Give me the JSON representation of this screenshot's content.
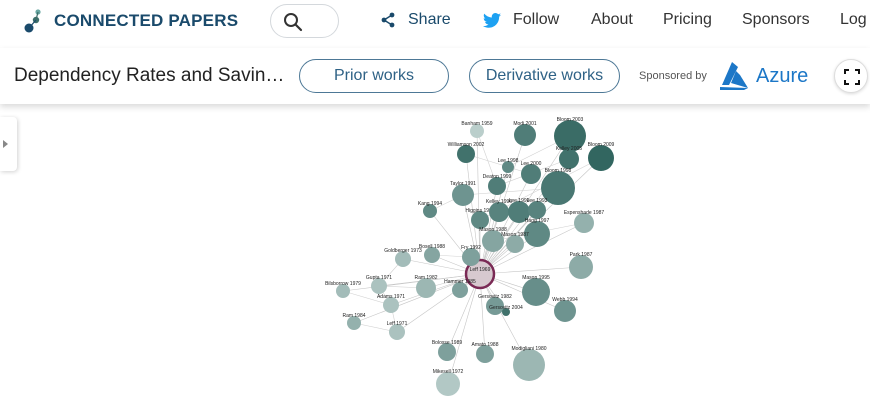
{
  "header": {
    "brand": "CONNECTED PAPERS",
    "nav": {
      "share": "Share",
      "follow": "Follow",
      "about": "About",
      "pricing": "Pricing",
      "sponsors": "Sponsors",
      "login": "Log"
    }
  },
  "toolbar": {
    "title": "Dependency Rates and Saving Rates",
    "prior_works": "Prior works",
    "derivative_works": "Derivative works",
    "sponsored_by": "Sponsored by",
    "sponsor_name": "Azure"
  },
  "colors": {
    "brand": "#1a4a6b",
    "accent": "#2f6286",
    "twitter": "#1da1f2",
    "azure": "#1c77c7",
    "node_dark": "#3d6e69",
    "node_light": "#c9d9d7",
    "selected": "#7a2a55"
  },
  "graph": {
    "nodes": [
      {
        "label": "Leff 1969",
        "year_shade": 0.5,
        "selected": true
      },
      {
        "label": "Banham 1959",
        "year_shade": 0.1
      },
      {
        "label": "Modi 2001",
        "year_shade": 0.8
      },
      {
        "label": "Bloom 2003",
        "year_shade": 0.95
      },
      {
        "label": "Williamson 2002",
        "year_shade": 0.9
      },
      {
        "label": "Lee 1998",
        "year_shade": 0.7
      },
      {
        "label": "Kelley 2005",
        "year_shade": 0.9
      },
      {
        "label": "Bloom 2009",
        "year_shade": 1.0
      },
      {
        "label": "Lee 2000",
        "year_shade": 0.8
      },
      {
        "label": "Deaton 1999",
        "year_shade": 0.8
      },
      {
        "label": "Bloom 1998",
        "year_shade": 0.85
      },
      {
        "label": "Taylor 1991",
        "year_shade": 0.6
      },
      {
        "label": "Kang 1994",
        "year_shade": 0.7
      },
      {
        "label": "Higgins 1994",
        "year_shade": 0.7
      },
      {
        "label": "Kelley 1996",
        "year_shade": 0.75
      },
      {
        "label": "Lee 1999",
        "year_shade": 0.8
      },
      {
        "label": "Lee 1993",
        "year_shade": 0.75
      },
      {
        "label": "Hagg 1997",
        "year_shade": 0.7
      },
      {
        "label": "Espenshade 1987",
        "year_shade": 0.35
      },
      {
        "label": "Mason 1988",
        "year_shade": 0.45
      },
      {
        "label": "Mason 1987",
        "year_shade": 0.4
      },
      {
        "label": "Goldberger 1973",
        "year_shade": 0.25
      },
      {
        "label": "Bosell 1988",
        "year_shade": 0.45
      },
      {
        "label": "Fry 1992",
        "year_shade": 0.5
      },
      {
        "label": "Park 1987",
        "year_shade": 0.4
      },
      {
        "label": "Gupta 1971",
        "year_shade": 0.2
      },
      {
        "label": "Ram 1982",
        "year_shade": 0.3
      },
      {
        "label": "Hammer 1985",
        "year_shade": 0.5
      },
      {
        "label": "Bilsborrow 1979",
        "year_shade": 0.25
      },
      {
        "label": "Adams 1971",
        "year_shade": 0.2
      },
      {
        "label": "Gersovitz 1982",
        "year_shade": 0.55
      },
      {
        "label": "Mason 1995",
        "year_shade": 0.65
      },
      {
        "label": "Gersovitz 2004",
        "year_shade": 0.9
      },
      {
        "label": "Ram 1984",
        "year_shade": 0.35
      },
      {
        "label": "Leff 1971",
        "year_shade": 0.2
      },
      {
        "label": "Webb 1994",
        "year_shade": 0.6
      },
      {
        "label": "Bolosse 1989",
        "year_shade": 0.5
      },
      {
        "label": "Amato 1988",
        "year_shade": 0.5
      },
      {
        "label": "Modigliani 1980",
        "year_shade": 0.3
      },
      {
        "label": "Mikesell 1972",
        "year_shade": 0.15
      }
    ]
  }
}
